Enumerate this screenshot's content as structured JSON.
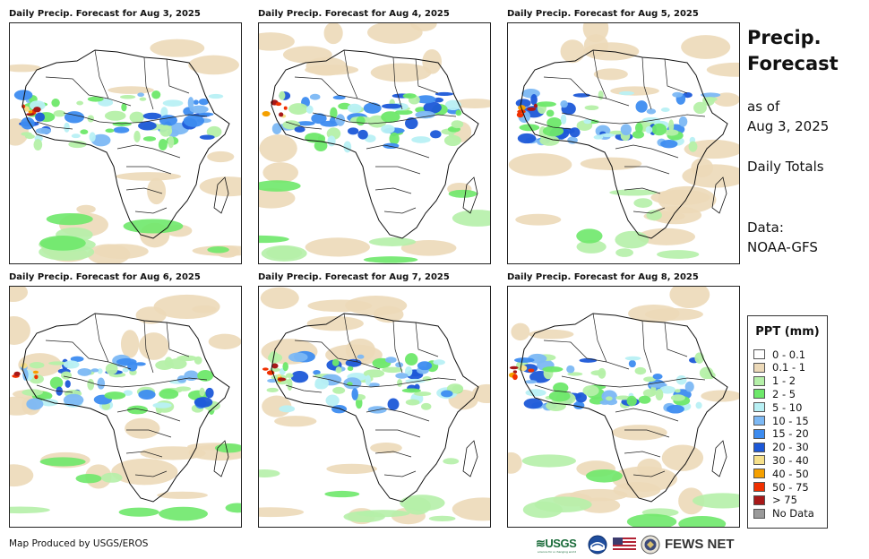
{
  "panels": [
    {
      "title": "Daily Precip. Forecast for Aug 3, 2025",
      "seed": 3
    },
    {
      "title": "Daily Precip. Forecast for Aug 4, 2025",
      "seed": 4
    },
    {
      "title": "Daily Precip. Forecast for Aug 5, 2025",
      "seed": 5
    },
    {
      "title": "Daily Precip. Forecast for Aug 6, 2025",
      "seed": 6
    },
    {
      "title": "Daily Precip. Forecast for Aug 7, 2025",
      "seed": 7
    },
    {
      "title": "Daily Precip. Forecast for Aug 8, 2025",
      "seed": 8
    }
  ],
  "sidebar": {
    "title_line1": "Precip.",
    "title_line2": "Forecast",
    "asof_line1": "as of",
    "asof_line2": "Aug 3, 2025",
    "totals": "Daily Totals",
    "data_line1": "Data:",
    "data_line2": "NOAA-GFS"
  },
  "legend": {
    "title": "PPT (mm)",
    "items": [
      {
        "label": "0 - 0.1",
        "color": "#ffffff"
      },
      {
        "label": "0.1 - 1",
        "color": "#ecd9b8"
      },
      {
        "label": "1 - 2",
        "color": "#b5f0a8"
      },
      {
        "label": "2 - 5",
        "color": "#6ee86a"
      },
      {
        "label": "5 - 10",
        "color": "#b8f0f4"
      },
      {
        "label": "10 - 15",
        "color": "#7cb8f4"
      },
      {
        "label": "15 - 20",
        "color": "#3d8cf0"
      },
      {
        "label": "20 - 30",
        "color": "#1c58d8"
      },
      {
        "label": "30 - 40",
        "color": "#f6e08a"
      },
      {
        "label": "40 - 50",
        "color": "#f5a000"
      },
      {
        "label": "50 - 75",
        "color": "#f03000"
      },
      {
        "label": "> 75",
        "color": "#a81818"
      },
      {
        "label": "No Data",
        "color": "#9a9a9a"
      }
    ]
  },
  "footer": {
    "credit": "Map Produced by USGS/EROS"
  },
  "logos": {
    "usgs": "≋USGS",
    "usgs_tagline": "science for a changing world",
    "fews": "FEWS NET"
  }
}
